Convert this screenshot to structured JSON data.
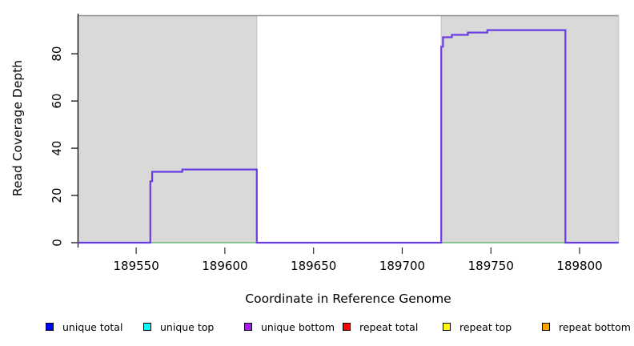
{
  "chart_data": {
    "type": "line",
    "title": "",
    "xlabel": "Coordinate in Reference Genome",
    "ylabel": "Read Coverage Depth",
    "xlim": [
      189517,
      189822
    ],
    "ylim": [
      0,
      97
    ],
    "x_ticks": [
      189550,
      189600,
      189650,
      189700,
      189750,
      189800
    ],
    "y_ticks": [
      0,
      20,
      40,
      60,
      80
    ],
    "grid": false,
    "legend_position": "bottom",
    "background_regions": [
      {
        "name": "masked-region-left",
        "x1": 189517,
        "x2": 189618,
        "color": "#d9d9d9"
      },
      {
        "name": "masked-region-right",
        "x1": 189722,
        "x2": 189822,
        "color": "#d9d9d9"
      }
    ],
    "top_boundary_line": {
      "x1": 189517,
      "x2": 189822,
      "color": "#969696"
    },
    "series": [
      {
        "name": "zero baseline",
        "type": "hline",
        "y": 0,
        "color": "#4fb35a"
      },
      {
        "name": "unique coverage depth",
        "type": "step",
        "color": "#6a3de2",
        "steps": [
          [
            189517,
            0
          ],
          [
            189558,
            26
          ],
          [
            189559,
            30
          ],
          [
            189576,
            31
          ],
          [
            189618,
            0
          ],
          [
            189722,
            83
          ],
          [
            189723,
            87
          ],
          [
            189728,
            88
          ],
          [
            189737,
            89
          ],
          [
            189748,
            90
          ],
          [
            189792,
            0
          ],
          [
            189822,
            0
          ]
        ]
      }
    ]
  },
  "legend": {
    "items": [
      {
        "label": "unique total",
        "color": "#0000ff"
      },
      {
        "label": "unique top",
        "color": "#00ffff"
      },
      {
        "label": "unique bottom",
        "color": "#a020f0"
      },
      {
        "label": "repeat total",
        "color": "#ff0000"
      },
      {
        "label": "repeat top",
        "color": "#ffff00"
      },
      {
        "label": "repeat bottom",
        "color": "#ffa500"
      }
    ]
  }
}
